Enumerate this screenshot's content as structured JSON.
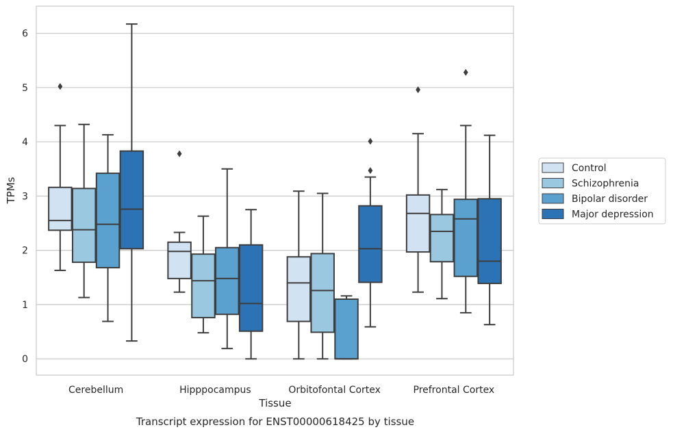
{
  "caption": "Transcript expression for ENST00000618425 by tissue",
  "chart_data": {
    "type": "box",
    "title": "",
    "xlabel": "Tissue",
    "ylabel": "TPMs",
    "ylim": [
      -0.3,
      6.5
    ],
    "yticks": [
      0,
      1,
      2,
      3,
      4,
      5,
      6
    ],
    "grid": "horizontal",
    "legend_position": "right",
    "categories": [
      "Cerebellum",
      "Hipppocampus",
      "Orbitofontal Cortex",
      "Prefrontal Cortex"
    ],
    "series": [
      {
        "name": "Control",
        "color": "#d1e2f2",
        "boxes": [
          {
            "whislo": 1.63,
            "q1": 2.37,
            "med": 2.55,
            "q3": 3.16,
            "whishi": 4.3,
            "fliers": [
              5.02
            ]
          },
          {
            "whislo": 1.23,
            "q1": 1.48,
            "med": 1.98,
            "q3": 2.15,
            "whishi": 2.33,
            "fliers": [
              3.78
            ]
          },
          {
            "whislo": 0.0,
            "q1": 0.69,
            "med": 1.4,
            "q3": 1.88,
            "whishi": 3.09,
            "fliers": []
          },
          {
            "whislo": 1.23,
            "q1": 1.97,
            "med": 2.68,
            "q3": 3.02,
            "whishi": 4.15,
            "fliers": [
              4.96
            ]
          }
        ]
      },
      {
        "name": "Schizophrenia",
        "color": "#9ac8e0",
        "boxes": [
          {
            "whislo": 1.13,
            "q1": 1.78,
            "med": 2.38,
            "q3": 3.14,
            "whishi": 4.32,
            "fliers": []
          },
          {
            "whislo": 0.48,
            "q1": 0.76,
            "med": 1.44,
            "q3": 1.93,
            "whishi": 2.63,
            "fliers": []
          },
          {
            "whislo": 0.0,
            "q1": 0.49,
            "med": 1.26,
            "q3": 1.94,
            "whishi": 3.05,
            "fliers": []
          },
          {
            "whislo": 1.11,
            "q1": 1.79,
            "med": 2.35,
            "q3": 2.66,
            "whishi": 3.12,
            "fliers": []
          }
        ]
      },
      {
        "name": "Bipolar disorder",
        "color": "#5aa1cf",
        "boxes": [
          {
            "whislo": 0.69,
            "q1": 1.68,
            "med": 2.48,
            "q3": 3.42,
            "whishi": 4.13,
            "fliers": []
          },
          {
            "whislo": 0.19,
            "q1": 0.82,
            "med": 1.48,
            "q3": 2.05,
            "whishi": 3.5,
            "fliers": []
          },
          {
            "whislo": 0.0,
            "q1": 0.0,
            "med": 0.0,
            "q3": 1.1,
            "whishi": 1.16,
            "fliers": []
          },
          {
            "whislo": 0.85,
            "q1": 1.52,
            "med": 2.58,
            "q3": 2.94,
            "whishi": 4.3,
            "fliers": [
              5.28
            ]
          }
        ]
      },
      {
        "name": "Major depression",
        "color": "#2c73b5",
        "boxes": [
          {
            "whislo": 0.33,
            "q1": 2.03,
            "med": 2.76,
            "q3": 3.83,
            "whishi": 6.17,
            "fliers": []
          },
          {
            "whislo": 0.0,
            "q1": 0.51,
            "med": 1.02,
            "q3": 2.1,
            "whishi": 2.75,
            "fliers": []
          },
          {
            "whislo": 0.59,
            "q1": 1.41,
            "med": 2.03,
            "q3": 2.82,
            "whishi": 3.35,
            "fliers": [
              3.47,
              4.01
            ]
          },
          {
            "whislo": 0.63,
            "q1": 1.39,
            "med": 1.8,
            "q3": 2.95,
            "whishi": 4.12,
            "fliers": []
          }
        ]
      }
    ]
  }
}
